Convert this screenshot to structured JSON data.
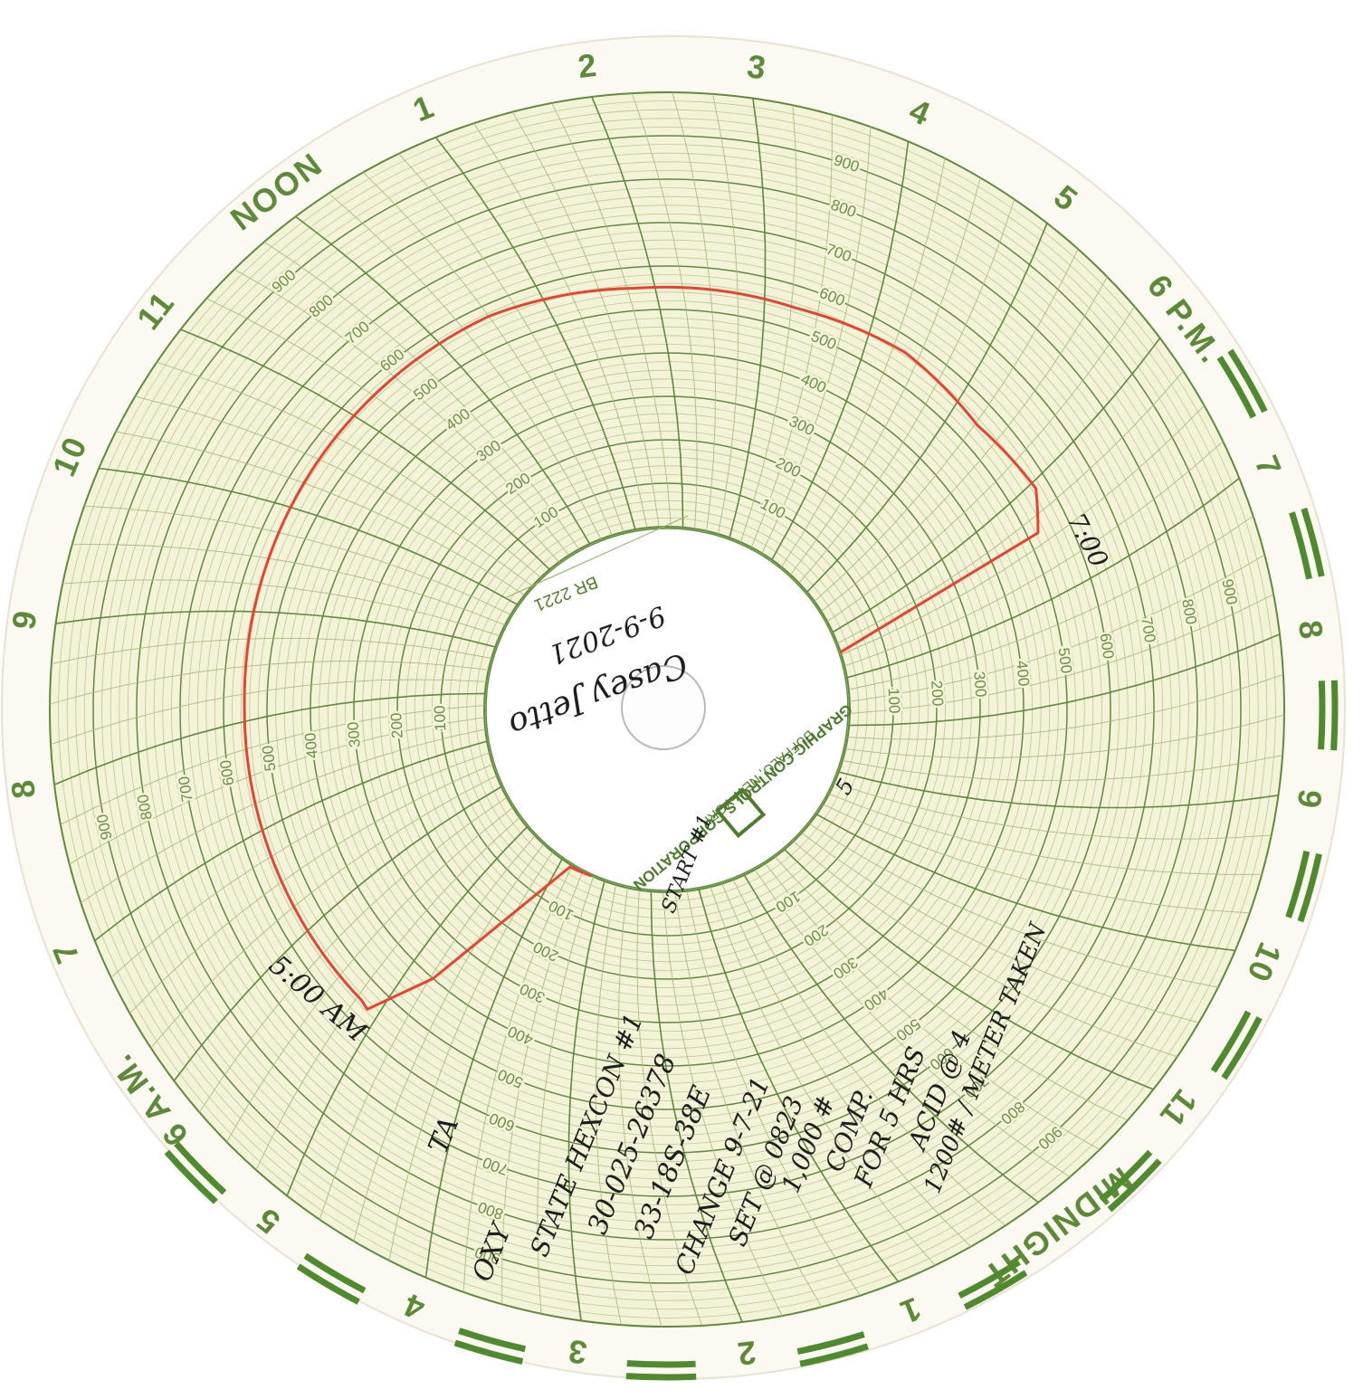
{
  "chart_data": {
    "type": "circular",
    "brand": "GRAPHIC CONTROLS CORPORATION",
    "brand_location": "BUFFALO, NEW YORK",
    "chart_number": "BR 2221",
    "xlim": [
      0,
      24
    ],
    "xticks": [
      {
        "value": 0,
        "label": "MIDNIGHT"
      },
      1,
      2,
      3,
      4,
      5,
      {
        "value": 6,
        "label": "6 A.M."
      },
      7,
      8,
      9,
      10,
      11,
      {
        "value": 12,
        "label": "NOON"
      },
      {
        "value": 13,
        "label": "1"
      },
      {
        "value": 14,
        "label": "2"
      },
      {
        "value": 15,
        "label": "3"
      },
      {
        "value": 16,
        "label": "4"
      },
      {
        "value": 17,
        "label": "5"
      },
      {
        "value": 18,
        "label": "6 P.M."
      },
      {
        "value": 19,
        "label": "7"
      },
      {
        "value": 20,
        "label": "8"
      },
      {
        "value": 21,
        "label": "9"
      },
      {
        "value": 22,
        "label": "10"
      },
      {
        "value": 23,
        "label": "11"
      }
    ],
    "ylim": [
      0,
      1000
    ],
    "yticks": [
      100,
      200,
      300,
      400,
      500,
      600,
      700,
      800,
      900
    ],
    "grid": true,
    "series": [
      {
        "color": "#e8432e",
        "x": [
          3.3,
          3.78,
          4.72,
          5.11,
          5.2,
          8.14,
          10.39,
          12.5,
          13.81,
          15.3,
          16.37,
          17.27,
          18.06,
          18.39,
          18.45
        ],
        "values": [
          0,
          5,
          400,
          555,
          550,
          552,
          565,
          573,
          552,
          550,
          567,
          548,
          569,
          525,
          0
        ]
      }
    ],
    "annotations": [
      "Casey Jetto",
      "9-9-2021",
      "START #1",
      "5:00 AM",
      "7:00",
      "5",
      "TA",
      "OXY",
      "STATE HEXCON #1",
      "30-025-26378",
      "33-18S-38E",
      "CHANGE 9-7-21",
      "SET @ 0823",
      "1,000 #",
      "COMP.",
      "FOR 5 HRS",
      "ACID @ 4",
      "1200# / METER TAKEN"
    ]
  }
}
